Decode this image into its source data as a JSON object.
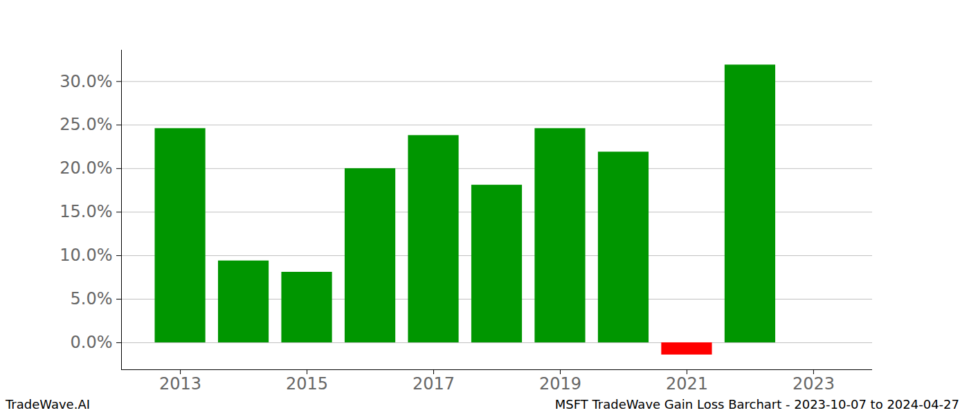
{
  "chart_data": {
    "type": "bar",
    "title": "MSFT TradeWave Gain Loss Barchart - 2023-10-07 to 2024-04-27",
    "annotations": [
      "TradeWave.AI"
    ],
    "x": [
      2013,
      2014,
      2015,
      2016,
      2017,
      2018,
      2019,
      2020,
      2021,
      2022
    ],
    "values": [
      24.6,
      9.4,
      8.1,
      20.0,
      23.8,
      18.1,
      24.6,
      21.9,
      -1.4,
      31.9
    ],
    "colors": [
      "#009600",
      "#009600",
      "#009600",
      "#009600",
      "#009600",
      "#009600",
      "#009600",
      "#009600",
      "#ff0000",
      "#009600"
    ],
    "xlim": [
      2012.07,
      2023.93
    ],
    "xticks": [
      2013,
      2015,
      2017,
      2019,
      2021,
      2023
    ],
    "ylim": [
      -3.1,
      33.6
    ],
    "yticks": [
      {
        "value": 0,
        "label": "0.0%"
      },
      {
        "value": 5,
        "label": "5.0%"
      },
      {
        "value": 10,
        "label": "10.0%"
      },
      {
        "value": 15,
        "label": "15.0%"
      },
      {
        "value": 20,
        "label": "20.0%"
      },
      {
        "value": 25,
        "label": "25.0%"
      },
      {
        "value": 30,
        "label": "30.0%"
      }
    ],
    "grid": true
  }
}
